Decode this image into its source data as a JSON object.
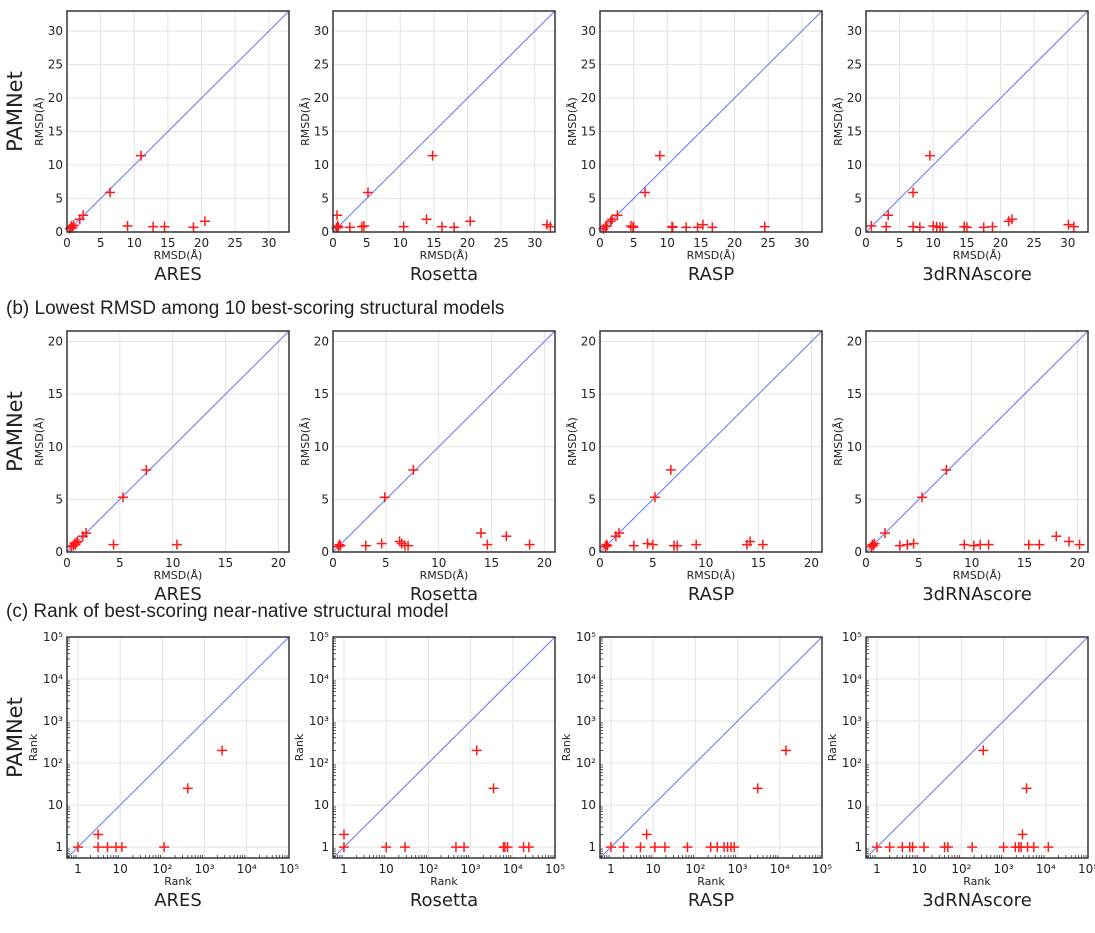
{
  "figure": {
    "row_titles": {
      "b": "(b) Lowest RMSD among 10 best-scoring structural models",
      "c": "(c) Rank of best-scoring near-native structural model"
    },
    "y_group_label": "PAMNet",
    "methods": [
      "ARES",
      "Rosetta",
      "RASP",
      "3dRNAscore"
    ],
    "colors": {
      "points": "#ff1a1a",
      "diagonal": "#6f7df0",
      "grid": "#e3e3e3",
      "frame": "#333333"
    }
  },
  "chart_data": [
    {
      "row": "a",
      "type": "scatter",
      "scale": "linear",
      "xlabel": "RMSD(Å)",
      "ylabel": "RMSD(Å)",
      "xlim": [
        0,
        33
      ],
      "ylim": [
        0,
        33
      ],
      "ticks": [
        0,
        5,
        10,
        15,
        20,
        25,
        30
      ],
      "tick_labels": [
        "0",
        "5",
        "10",
        "15",
        "20",
        "25",
        "30"
      ],
      "grid": true,
      "diagonal": "y = x",
      "marker": "+",
      "panels": [
        {
          "method": "ARES",
          "points": [
            [
              0.4,
              0.5
            ],
            [
              0.6,
              0.7
            ],
            [
              0.7,
              0.9
            ],
            [
              0.8,
              0.6
            ],
            [
              1.0,
              1.0
            ],
            [
              1.9,
              1.9
            ],
            [
              2.4,
              2.5
            ],
            [
              6.4,
              5.9
            ],
            [
              11.0,
              11.4
            ],
            [
              9.0,
              0.9
            ],
            [
              12.8,
              0.8
            ],
            [
              14.5,
              0.8
            ],
            [
              18.8,
              0.7
            ],
            [
              20.5,
              1.6
            ]
          ]
        },
        {
          "method": "Rosetta",
          "points": [
            [
              0.5,
              0.6
            ],
            [
              0.6,
              2.5
            ],
            [
              0.7,
              0.9
            ],
            [
              0.8,
              0.7
            ],
            [
              2.5,
              0.7
            ],
            [
              4.3,
              0.8
            ],
            [
              4.6,
              0.9
            ],
            [
              5.2,
              5.9
            ],
            [
              10.5,
              0.8
            ],
            [
              14.8,
              11.4
            ],
            [
              13.9,
              1.9
            ],
            [
              16.2,
              0.8
            ],
            [
              18.0,
              0.7
            ],
            [
              20.4,
              1.6
            ],
            [
              31.8,
              1.1
            ],
            [
              32.3,
              0.8
            ]
          ]
        },
        {
          "method": "RASP",
          "points": [
            [
              0.5,
              0.5
            ],
            [
              0.8,
              0.8
            ],
            [
              1.0,
              0.9
            ],
            [
              1.6,
              1.6
            ],
            [
              1.8,
              1.9
            ],
            [
              2.6,
              2.5
            ],
            [
              4.6,
              0.9
            ],
            [
              5.0,
              0.8
            ],
            [
              4.9,
              0.7
            ],
            [
              6.7,
              5.9
            ],
            [
              8.9,
              11.4
            ],
            [
              10.7,
              0.8
            ],
            [
              10.8,
              0.7
            ],
            [
              12.8,
              0.7
            ],
            [
              14.5,
              0.7
            ],
            [
              15.3,
              1.1
            ],
            [
              16.7,
              0.7
            ],
            [
              24.5,
              0.8
            ]
          ]
        },
        {
          "method": "3dRNAscore",
          "points": [
            [
              0.8,
              0.9
            ],
            [
              3.0,
              0.8
            ],
            [
              3.3,
              2.5
            ],
            [
              7.0,
              5.9
            ],
            [
              7.0,
              0.8
            ],
            [
              8.0,
              0.7
            ],
            [
              9.5,
              11.4
            ],
            [
              10.0,
              0.9
            ],
            [
              10.5,
              0.8
            ],
            [
              11.0,
              0.7
            ],
            [
              11.4,
              0.7
            ],
            [
              14.6,
              0.8
            ],
            [
              15.0,
              0.7
            ],
            [
              17.5,
              0.7
            ],
            [
              18.8,
              0.8
            ],
            [
              21.2,
              1.6
            ],
            [
              21.7,
              1.9
            ],
            [
              30.1,
              1.1
            ],
            [
              30.9,
              0.8
            ]
          ]
        }
      ]
    },
    {
      "row": "b",
      "type": "scatter",
      "scale": "linear",
      "xlabel": "RMSD(Å)",
      "ylabel": "RMSD(Å)",
      "xlim": [
        0,
        21
      ],
      "ylim": [
        0,
        21
      ],
      "ticks": [
        0,
        5,
        10,
        15,
        20
      ],
      "tick_labels": [
        "0",
        "5",
        "10",
        "15",
        "20"
      ],
      "grid": true,
      "diagonal": "y = x",
      "marker": "+",
      "panels": [
        {
          "method": "ARES",
          "points": [
            [
              0.4,
              0.5
            ],
            [
              0.6,
              0.6
            ],
            [
              0.7,
              0.8
            ],
            [
              0.8,
              0.7
            ],
            [
              0.9,
              0.9
            ],
            [
              1.0,
              1.0
            ],
            [
              1.5,
              1.5
            ],
            [
              1.8,
              1.8
            ],
            [
              4.4,
              0.7
            ],
            [
              5.3,
              5.2
            ],
            [
              7.5,
              7.8
            ],
            [
              10.4,
              0.7
            ]
          ]
        },
        {
          "method": "Rosetta",
          "points": [
            [
              0.5,
              0.5
            ],
            [
              0.6,
              0.7
            ],
            [
              0.7,
              0.6
            ],
            [
              3.1,
              0.6
            ],
            [
              4.6,
              0.8
            ],
            [
              4.9,
              5.2
            ],
            [
              6.3,
              1.0
            ],
            [
              6.5,
              0.8
            ],
            [
              6.8,
              0.6
            ],
            [
              7.1,
              0.6
            ],
            [
              7.6,
              7.8
            ],
            [
              14.0,
              1.8
            ],
            [
              14.6,
              0.7
            ],
            [
              16.4,
              1.5
            ],
            [
              18.6,
              0.7
            ]
          ]
        },
        {
          "method": "RASP",
          "points": [
            [
              0.5,
              0.5
            ],
            [
              0.6,
              0.7
            ],
            [
              0.7,
              0.6
            ],
            [
              1.5,
              1.5
            ],
            [
              1.8,
              1.8
            ],
            [
              3.2,
              0.6
            ],
            [
              4.5,
              0.8
            ],
            [
              5.0,
              0.7
            ],
            [
              5.2,
              5.2
            ],
            [
              6.7,
              7.8
            ],
            [
              7.0,
              0.6
            ],
            [
              7.3,
              0.6
            ],
            [
              9.1,
              0.7
            ],
            [
              13.9,
              0.7
            ],
            [
              14.2,
              1.0
            ],
            [
              15.4,
              0.7
            ]
          ]
        },
        {
          "method": "3dRNAscore",
          "points": [
            [
              0.5,
              0.5
            ],
            [
              0.6,
              0.7
            ],
            [
              0.7,
              0.6
            ],
            [
              0.8,
              0.8
            ],
            [
              1.8,
              1.8
            ],
            [
              3.2,
              0.6
            ],
            [
              3.9,
              0.7
            ],
            [
              4.5,
              0.8
            ],
            [
              5.3,
              5.2
            ],
            [
              7.6,
              7.8
            ],
            [
              9.3,
              0.7
            ],
            [
              10.2,
              0.6
            ],
            [
              10.8,
              0.7
            ],
            [
              11.6,
              0.7
            ],
            [
              15.4,
              0.7
            ],
            [
              16.4,
              0.7
            ],
            [
              18.0,
              1.5
            ],
            [
              19.2,
              1.0
            ],
            [
              20.2,
              0.7
            ]
          ]
        }
      ]
    },
    {
      "row": "c",
      "type": "scatter",
      "scale": "log",
      "xlabel": "Rank",
      "ylabel": "Rank",
      "xlim": [
        0.55,
        100000
      ],
      "ylim": [
        0.55,
        100000
      ],
      "ticks": [
        1,
        10,
        100,
        1000,
        10000,
        100000
      ],
      "tick_labels": [
        "1",
        "10",
        "10²",
        "10³",
        "10⁴",
        "10⁵"
      ],
      "grid": true,
      "diagonal": "y = x",
      "marker": "+",
      "panels": [
        {
          "method": "ARES",
          "points": [
            [
              1,
              1
            ],
            [
              3,
              1
            ],
            [
              3,
              2
            ],
            [
              5,
              1
            ],
            [
              8,
              1
            ],
            [
              11,
              1
            ],
            [
              110,
              1
            ],
            [
              400,
              25
            ],
            [
              2600,
              200
            ]
          ]
        },
        {
          "method": "Rosetta",
          "points": [
            [
              1,
              1
            ],
            [
              1,
              2
            ],
            [
              10,
              1
            ],
            [
              28,
              1
            ],
            [
              450,
              1
            ],
            [
              700,
              1
            ],
            [
              1400,
              200
            ],
            [
              3500,
              25
            ],
            [
              6000,
              1
            ],
            [
              6500,
              1
            ],
            [
              7500,
              1
            ],
            [
              18000,
              1
            ],
            [
              24000,
              1
            ]
          ]
        },
        {
          "method": "RASP",
          "points": [
            [
              1,
              1
            ],
            [
              2,
              1
            ],
            [
              5,
              1
            ],
            [
              7,
              2
            ],
            [
              11,
              1
            ],
            [
              19,
              1
            ],
            [
              65,
              1
            ],
            [
              230,
              1
            ],
            [
              330,
              1
            ],
            [
              480,
              1
            ],
            [
              580,
              1
            ],
            [
              700,
              1
            ],
            [
              830,
              1
            ],
            [
              3000,
              25
            ],
            [
              14000,
              200
            ]
          ]
        },
        {
          "method": "3dRNAscore",
          "points": [
            [
              1,
              1
            ],
            [
              2,
              1
            ],
            [
              4,
              1
            ],
            [
              6,
              1
            ],
            [
              7,
              1
            ],
            [
              13,
              1
            ],
            [
              40,
              1
            ],
            [
              48,
              1
            ],
            [
              180,
              1
            ],
            [
              330,
              200
            ],
            [
              1000,
              1
            ],
            [
              1900,
              1
            ],
            [
              2300,
              1
            ],
            [
              2600,
              1
            ],
            [
              2800,
              2
            ],
            [
              3500,
              25
            ],
            [
              3700,
              1
            ],
            [
              5200,
              1
            ],
            [
              11500,
              1
            ]
          ]
        }
      ]
    }
  ]
}
